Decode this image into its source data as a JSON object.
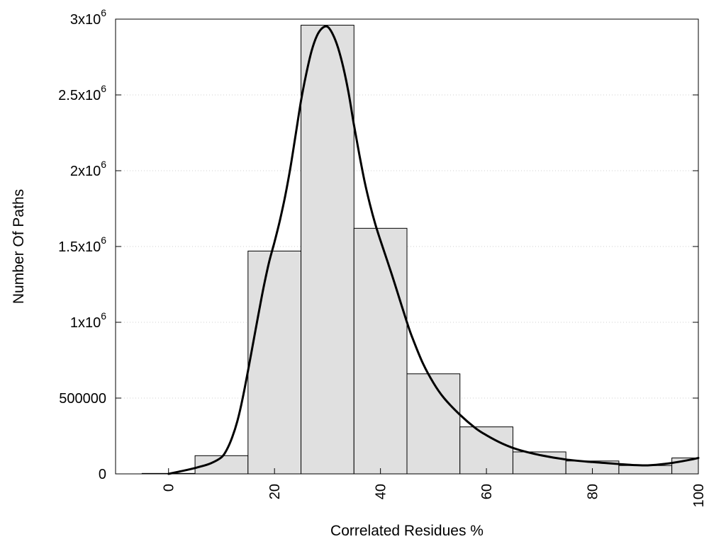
{
  "chart_data": {
    "type": "bar",
    "xlabel": "Correlated Residues %",
    "ylabel": "Number Of Paths",
    "xlim": [
      -10,
      100
    ],
    "ylim": [
      0,
      3000000
    ],
    "grid": true,
    "x_ticks": [
      {
        "value": 0,
        "label": "0"
      },
      {
        "value": 20,
        "label": "20"
      },
      {
        "value": 40,
        "label": "40"
      },
      {
        "value": 60,
        "label": "60"
      },
      {
        "value": 80,
        "label": "80"
      },
      {
        "value": 100,
        "label": "100"
      }
    ],
    "y_ticks": [
      {
        "value": 0,
        "base": "0",
        "exp": ""
      },
      {
        "value": 500000,
        "base": "500000",
        "exp": ""
      },
      {
        "value": 1000000,
        "base": "1x10",
        "exp": "6"
      },
      {
        "value": 1500000,
        "base": "1.5x10",
        "exp": "6"
      },
      {
        "value": 2000000,
        "base": "2x10",
        "exp": "6"
      },
      {
        "value": 2500000,
        "base": "2.5x10",
        "exp": "6"
      },
      {
        "value": 3000000,
        "base": "3x10",
        "exp": "6"
      }
    ],
    "bars": [
      {
        "x": 0,
        "value": 3000
      },
      {
        "x": 10,
        "value": 120000
      },
      {
        "x": 20,
        "value": 1470000
      },
      {
        "x": 30,
        "value": 2960000
      },
      {
        "x": 40,
        "value": 1620000
      },
      {
        "x": 50,
        "value": 660000
      },
      {
        "x": 60,
        "value": 310000
      },
      {
        "x": 70,
        "value": 145000
      },
      {
        "x": 80,
        "value": 85000
      },
      {
        "x": 90,
        "value": 55000
      },
      {
        "x": 100,
        "value": 105000
      }
    ],
    "bar_width": 10,
    "bar_color": "#e0e0e0",
    "curve_color": "#000000",
    "curve": [
      [
        0,
        0
      ],
      [
        2,
        15000
      ],
      [
        4,
        30000
      ],
      [
        6,
        48000
      ],
      [
        8,
        70000
      ],
      [
        10,
        110000
      ],
      [
        11,
        160000
      ],
      [
        12,
        240000
      ],
      [
        13,
        350000
      ],
      [
        14,
        500000
      ],
      [
        15,
        680000
      ],
      [
        16,
        870000
      ],
      [
        17,
        1060000
      ],
      [
        18,
        1240000
      ],
      [
        19,
        1400000
      ],
      [
        20,
        1530000
      ],
      [
        21,
        1670000
      ],
      [
        22,
        1830000
      ],
      [
        23,
        2020000
      ],
      [
        24,
        2240000
      ],
      [
        25,
        2460000
      ],
      [
        26,
        2640000
      ],
      [
        27,
        2790000
      ],
      [
        28,
        2890000
      ],
      [
        29,
        2940000
      ],
      [
        30,
        2950000
      ],
      [
        31,
        2900000
      ],
      [
        32,
        2810000
      ],
      [
        33,
        2680000
      ],
      [
        34,
        2510000
      ],
      [
        35,
        2300000
      ],
      [
        36,
        2110000
      ],
      [
        37,
        1930000
      ],
      [
        38,
        1780000
      ],
      [
        39,
        1650000
      ],
      [
        40,
        1540000
      ],
      [
        42,
        1330000
      ],
      [
        44,
        1110000
      ],
      [
        45,
        1000000
      ],
      [
        46,
        900000
      ],
      [
        48,
        730000
      ],
      [
        50,
        600000
      ],
      [
        52,
        500000
      ],
      [
        55,
        390000
      ],
      [
        58,
        300000
      ],
      [
        60,
        255000
      ],
      [
        63,
        200000
      ],
      [
        66,
        160000
      ],
      [
        70,
        125000
      ],
      [
        75,
        95000
      ],
      [
        80,
        78000
      ],
      [
        85,
        65000
      ],
      [
        88,
        58000
      ],
      [
        90,
        56000
      ],
      [
        92,
        60000
      ],
      [
        95,
        72000
      ],
      [
        98,
        90000
      ],
      [
        100,
        105000
      ]
    ]
  }
}
